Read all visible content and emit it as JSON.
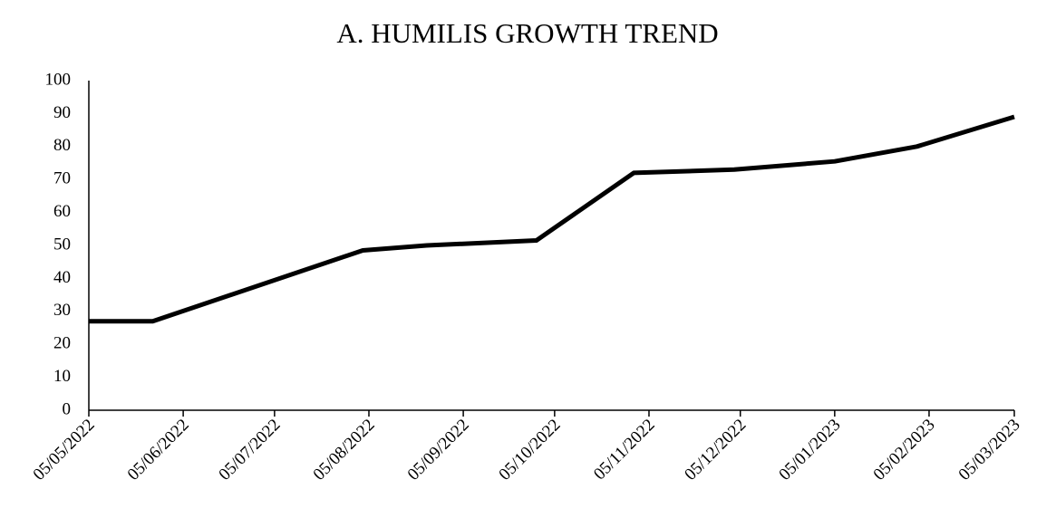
{
  "chart_data": {
    "type": "line",
    "title": "A. HUMILIS GROWTH TREND",
    "x": [
      "05/05/2022",
      "26/05/2022",
      "03/08/2022",
      "24/08/2022",
      "29/09/2022",
      "31/10/2022",
      "03/12/2022",
      "05/01/2023",
      "01/02/2023",
      "05/03/2023"
    ],
    "series": [
      {
        "color": "#000000",
        "values": [
          27,
          27,
          48.5,
          50,
          51.5,
          72,
          73,
          75.5,
          80,
          89
        ]
      }
    ],
    "xlim": [
      "05/05/2022",
      "05/03/2023"
    ],
    "xticks": [
      "05/05/2022",
      "05/06/2022",
      "05/07/2022",
      "05/08/2022",
      "05/09/2022",
      "05/10/2022",
      "05/11/2022",
      "05/12/2022",
      "05/01/2023",
      "05/02/2023",
      "05/03/2023"
    ],
    "ylim": [
      0,
      100
    ],
    "yticks": [
      0,
      10,
      20,
      30,
      40,
      50,
      60,
      70,
      80,
      90,
      100
    ],
    "grid": false
  }
}
